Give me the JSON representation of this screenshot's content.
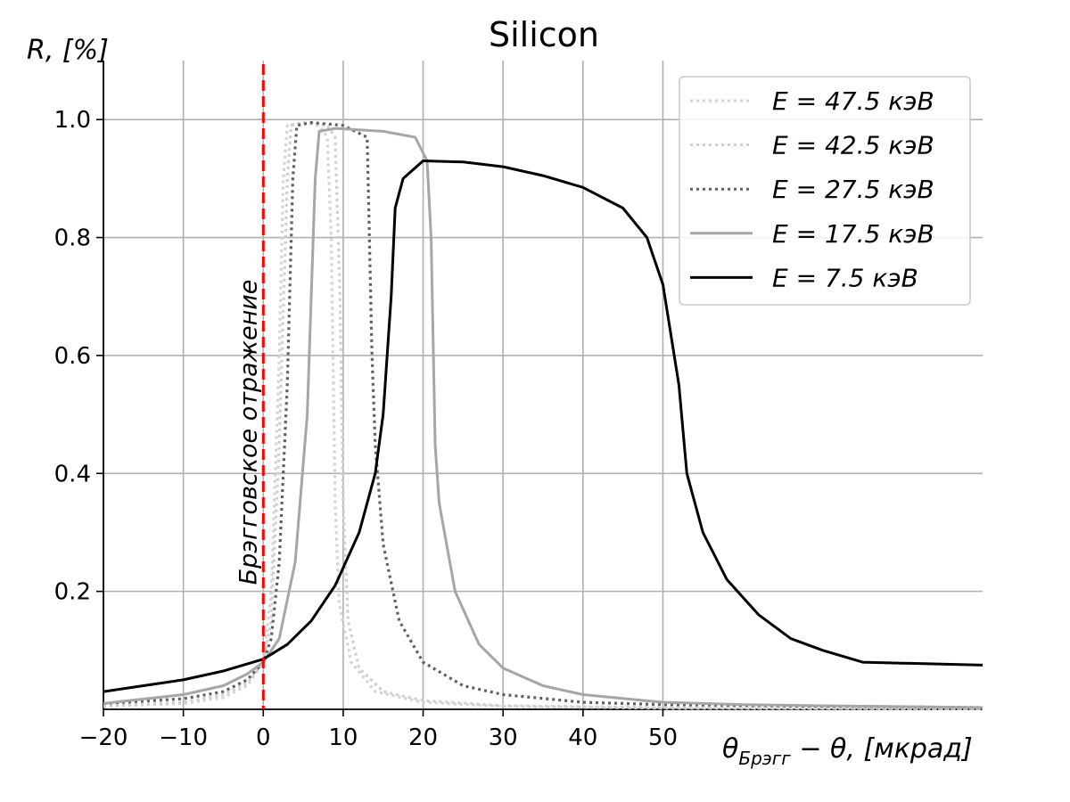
{
  "chart_data": {
    "type": "line",
    "title": "Silicon",
    "xlabel": "θ_Брэгг − θ, [мкрад]",
    "xlabel_main": "θ",
    "xlabel_sub": "Брэгг",
    "xlabel_rest": " − θ, [мкрад]",
    "ylabel": "R, [%]",
    "xlim": [
      -20,
      90
    ],
    "ylim": [
      0,
      1.1
    ],
    "xticks": [
      -20,
      -10,
      0,
      10,
      20,
      30,
      40,
      50
    ],
    "xtick_labels": [
      "−20",
      "−10",
      "0",
      "10",
      "20",
      "30",
      "40",
      "50"
    ],
    "yticks": [
      0.2,
      0.4,
      0.6,
      0.8,
      1.0
    ],
    "ytick_labels": [
      "0.2",
      "0.4",
      "0.6",
      "0.8",
      "1.0"
    ],
    "grid": true,
    "legend_position": "top-right",
    "annotation": {
      "text": "Брэгговское отражение",
      "x": 0,
      "line_color": "#ff0000"
    },
    "series": [
      {
        "name": "E = 47.5 кэВ",
        "legend_label": "E = 47.5 кэВ",
        "color": "#d3d3d3",
        "style": "dotted",
        "points": [
          [
            -20,
            0.005
          ],
          [
            -10,
            0.01
          ],
          [
            -5,
            0.02
          ],
          [
            -2,
            0.04
          ],
          [
            0,
            0.08
          ],
          [
            1,
            0.2
          ],
          [
            2,
            0.6
          ],
          [
            2.5,
            0.9
          ],
          [
            3,
            0.99
          ],
          [
            5,
            0.995
          ],
          [
            7,
            0.99
          ],
          [
            8,
            0.97
          ],
          [
            8.5,
            0.8
          ],
          [
            9,
            0.35
          ],
          [
            9.5,
            0.18
          ],
          [
            11,
            0.08
          ],
          [
            14,
            0.03
          ],
          [
            20,
            0.012
          ],
          [
            30,
            0.005
          ],
          [
            50,
            0.002
          ],
          [
            90,
            0.001
          ]
        ]
      },
      {
        "name": "E = 42.5 кэВ",
        "legend_label": "E = 42.5 кэВ",
        "color": "#cfcfcf",
        "style": "dotted",
        "points": [
          [
            -20,
            0.006
          ],
          [
            -10,
            0.012
          ],
          [
            -5,
            0.025
          ],
          [
            -2,
            0.045
          ],
          [
            0,
            0.08
          ],
          [
            1,
            0.15
          ],
          [
            2,
            0.45
          ],
          [
            3,
            0.9
          ],
          [
            3.5,
            0.99
          ],
          [
            5,
            0.995
          ],
          [
            8,
            0.99
          ],
          [
            9,
            0.97
          ],
          [
            9.6,
            0.7
          ],
          [
            10,
            0.35
          ],
          [
            10.6,
            0.15
          ],
          [
            12,
            0.07
          ],
          [
            15,
            0.03
          ],
          [
            20,
            0.015
          ],
          [
            30,
            0.006
          ],
          [
            50,
            0.003
          ],
          [
            90,
            0.001
          ]
        ]
      },
      {
        "name": "E = 27.5 кэВ",
        "legend_label": "E = 27.5 кэВ",
        "color": "#606060",
        "style": "dotted",
        "points": [
          [
            -20,
            0.01
          ],
          [
            -10,
            0.018
          ],
          [
            -5,
            0.03
          ],
          [
            -2,
            0.05
          ],
          [
            0,
            0.08
          ],
          [
            1,
            0.12
          ],
          [
            2,
            0.25
          ],
          [
            3,
            0.55
          ],
          [
            3.7,
            0.9
          ],
          [
            4.2,
            0.99
          ],
          [
            6,
            0.995
          ],
          [
            10,
            0.99
          ],
          [
            13,
            0.97
          ],
          [
            13.6,
            0.6
          ],
          [
            14,
            0.45
          ],
          [
            15,
            0.28
          ],
          [
            17,
            0.15
          ],
          [
            20,
            0.08
          ],
          [
            25,
            0.04
          ],
          [
            30,
            0.025
          ],
          [
            40,
            0.012
          ],
          [
            50,
            0.008
          ],
          [
            90,
            0.003
          ]
        ]
      },
      {
        "name": "E = 17.5 кэВ",
        "legend_label": "E = 17.5 кэВ",
        "color": "#a6a6a6",
        "style": "solid",
        "points": [
          [
            -20,
            0.01
          ],
          [
            -10,
            0.025
          ],
          [
            -5,
            0.04
          ],
          [
            -2,
            0.06
          ],
          [
            0,
            0.08
          ],
          [
            2,
            0.12
          ],
          [
            4,
            0.25
          ],
          [
            5.5,
            0.5
          ],
          [
            6.5,
            0.9
          ],
          [
            7,
            0.98
          ],
          [
            9,
            0.985
          ],
          [
            15,
            0.98
          ],
          [
            19,
            0.97
          ],
          [
            20.5,
            0.93
          ],
          [
            21,
            0.8
          ],
          [
            21.5,
            0.45
          ],
          [
            22,
            0.35
          ],
          [
            24,
            0.2
          ],
          [
            27,
            0.11
          ],
          [
            30,
            0.07
          ],
          [
            35,
            0.04
          ],
          [
            40,
            0.025
          ],
          [
            50,
            0.012
          ],
          [
            60,
            0.008
          ],
          [
            70,
            0.006
          ],
          [
            90,
            0.003
          ]
        ]
      },
      {
        "name": "E = 7.5 кэВ",
        "legend_label": "E = 7.5 кэВ",
        "color": "#000000",
        "style": "solid",
        "points": [
          [
            -20,
            0.03
          ],
          [
            -15,
            0.04
          ],
          [
            -10,
            0.05
          ],
          [
            -5,
            0.065
          ],
          [
            0,
            0.085
          ],
          [
            3,
            0.11
          ],
          [
            6,
            0.15
          ],
          [
            9,
            0.21
          ],
          [
            12,
            0.3
          ],
          [
            14,
            0.4
          ],
          [
            15,
            0.5
          ],
          [
            16,
            0.7
          ],
          [
            16.5,
            0.85
          ],
          [
            17.5,
            0.9
          ],
          [
            20,
            0.93
          ],
          [
            25,
            0.928
          ],
          [
            30,
            0.92
          ],
          [
            35,
            0.905
          ],
          [
            40,
            0.885
          ],
          [
            45,
            0.85
          ],
          [
            48,
            0.8
          ],
          [
            50,
            0.72
          ],
          [
            52,
            0.55
          ],
          [
            53,
            0.4
          ],
          [
            55,
            0.3
          ],
          [
            58,
            0.22
          ],
          [
            62,
            0.16
          ],
          [
            66,
            0.12
          ],
          [
            70,
            0.1
          ],
          [
            75,
            0.08
          ],
          [
            90,
            0.075
          ]
        ]
      }
    ]
  }
}
